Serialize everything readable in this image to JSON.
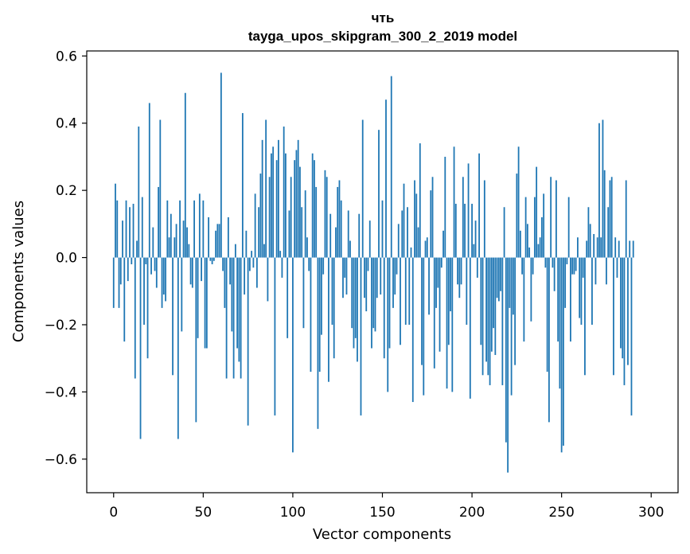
{
  "chart_data": {
    "type": "bar",
    "title": "чть",
    "subtitle": "tayga_upos_skipgram_300_2_2019 model",
    "xlabel": "Vector components",
    "ylabel": "Components values",
    "xlim": [
      -15,
      315
    ],
    "ylim": [
      -0.7,
      0.615
    ],
    "xticks": [
      0,
      50,
      100,
      150,
      200,
      250,
      300
    ],
    "yticks": [
      -0.6,
      -0.4,
      -0.2,
      0.0,
      0.2,
      0.4,
      0.6
    ],
    "ytick_labels": [
      "−0.6",
      "−0.4",
      "−0.2",
      "0.0",
      "0.2",
      "0.4",
      "0.6"
    ],
    "bar_color": "#1f77b4",
    "grid": false,
    "series": [
      {
        "name": "чть",
        "values": [
          -0.15,
          0.22,
          0.17,
          -0.15,
          -0.08,
          0.11,
          -0.25,
          0.17,
          -0.07,
          0.15,
          -0.02,
          0.16,
          -0.36,
          0.05,
          0.39,
          -0.54,
          0.18,
          -0.2,
          -0.02,
          -0.3,
          0.46,
          -0.05,
          0.09,
          -0.04,
          -0.09,
          0.21,
          0.41,
          -0.15,
          -0.11,
          -0.13,
          0.17,
          0.06,
          0.13,
          -0.35,
          0.06,
          0.1,
          -0.54,
          0.17,
          -0.22,
          0.11,
          0.49,
          0.09,
          0.04,
          -0.08,
          -0.09,
          0.17,
          -0.49,
          -0.24,
          0.19,
          -0.07,
          0.17,
          -0.27,
          -0.27,
          0.12,
          -0.01,
          -0.02,
          -0.01,
          0.08,
          0.1,
          0.1,
          0.55,
          -0.04,
          -0.15,
          -0.36,
          0.12,
          -0.08,
          -0.22,
          -0.36,
          0.04,
          -0.27,
          -0.31,
          -0.36,
          0.43,
          -0.11,
          0.08,
          -0.5,
          -0.04,
          0.02,
          -0.03,
          0.19,
          -0.09,
          0.15,
          0.25,
          0.35,
          0.04,
          0.41,
          -0.13,
          0.24,
          0.31,
          0.33,
          -0.47,
          0.29,
          0.35,
          0.02,
          -0.06,
          0.39,
          0.31,
          -0.24,
          0.14,
          0.24,
          -0.58,
          0.29,
          0.32,
          0.35,
          0.27,
          0.15,
          -0.21,
          0.2,
          0.06,
          -0.04,
          -0.34,
          0.31,
          0.29,
          0.21,
          -0.51,
          -0.34,
          -0.23,
          -0.05,
          0.26,
          0.24,
          -0.37,
          0.13,
          -0.2,
          -0.3,
          0.09,
          0.21,
          0.23,
          0.17,
          -0.12,
          -0.06,
          -0.11,
          0.14,
          0.05,
          -0.21,
          -0.27,
          -0.24,
          -0.31,
          0.13,
          -0.47,
          0.41,
          -0.12,
          -0.16,
          -0.04,
          0.11,
          -0.27,
          -0.21,
          -0.22,
          -0.12,
          0.38,
          -0.11,
          0.17,
          -0.3,
          0.47,
          -0.4,
          -0.27,
          0.54,
          -0.15,
          -0.11,
          -0.05,
          0.1,
          -0.26,
          0.14,
          0.22,
          -0.2,
          0.15,
          -0.2,
          0.03,
          -0.43,
          0.23,
          0.19,
          0.09,
          0.34,
          -0.32,
          -0.41,
          0.05,
          0.06,
          -0.17,
          0.2,
          0.24,
          -0.33,
          -0.15,
          -0.09,
          -0.28,
          -0.03,
          0.08,
          0.3,
          -0.39,
          -0.26,
          -0.16,
          -0.4,
          0.33,
          0.16,
          -0.08,
          -0.12,
          -0.08,
          0.24,
          0.16,
          -0.2,
          0.28,
          -0.42,
          0.16,
          0.04,
          0.11,
          -0.06,
          0.31,
          -0.26,
          -0.35,
          0.23,
          -0.31,
          -0.35,
          -0.38,
          -0.28,
          -0.21,
          -0.29,
          -0.12,
          -0.13,
          -0.1,
          -0.38,
          0.15,
          -0.55,
          -0.64,
          -0.15,
          -0.41,
          -0.17,
          -0.32,
          0.25,
          0.33,
          0.08,
          -0.05,
          -0.25,
          0.18,
          0.1,
          0.03,
          -0.19,
          -0.05,
          0.18,
          0.27,
          0.04,
          0.06,
          0.12,
          0.19,
          -0.03,
          -0.34,
          -0.49,
          0.24,
          -0.03,
          -0.1,
          0.23,
          -0.25,
          -0.39,
          -0.58,
          -0.56,
          -0.15,
          -0.02,
          0.18,
          -0.25,
          -0.05,
          -0.05,
          -0.04,
          0.06,
          -0.18,
          -0.2,
          -0.06,
          -0.35,
          0.05,
          0.15,
          0.1,
          -0.2,
          0.07,
          -0.08,
          0.06,
          0.4,
          0.06,
          0.41,
          0.26,
          -0.08,
          0.15,
          0.23,
          0.24,
          -0.35,
          0.06,
          -0.06,
          0.05,
          -0.27,
          -0.3,
          -0.38,
          0.23,
          -0.32,
          0.05,
          -0.47,
          0.05
        ]
      }
    ]
  }
}
